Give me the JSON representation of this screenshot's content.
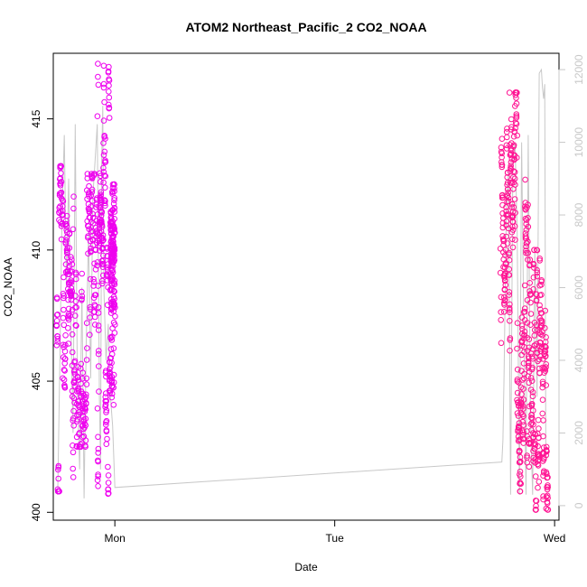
{
  "chart_data": {
    "type": "scatter",
    "title": "ATOM2 Northeast_Pacific_2 CO2_NOAA",
    "xlabel": "Date",
    "ylabel": "CO2_NOAA",
    "x_ticks": [
      "Mon",
      "Tue",
      "Wed"
    ],
    "x_tick_positions": [
      1,
      2,
      3
    ],
    "xlim": [
      0.72,
      3.02
    ],
    "ylim": [
      399.7,
      417.5
    ],
    "y_ticks": [
      400,
      405,
      410,
      415
    ],
    "y2lim": [
      -400,
      12450
    ],
    "y2_ticks": [
      0,
      2000,
      4000,
      6000,
      8000,
      10000,
      12000
    ],
    "grid": false,
    "colors": {
      "points_early": "#ee00ee",
      "points_late": "#ff1493",
      "secondary_line": "#c8c8c8",
      "axis": "#000000",
      "secondary_axis": "#c8c8c8"
    },
    "series": [
      {
        "axis": "left",
        "style": "points",
        "segments": [
          {
            "x_range": [
              0.735,
              0.82
            ],
            "y_range": [
              400.8,
              413.2
            ]
          },
          {
            "x_range": [
              0.82,
              0.92
            ],
            "y_range": [
              402.5,
              412.9
            ]
          },
          {
            "x_range": [
              0.92,
              0.98
            ],
            "y_range": [
              400.3,
              417.1
            ]
          },
          {
            "x_range": [
              0.98,
              1.0
            ],
            "y_range": [
              404.0,
              412.5
            ]
          },
          {
            "x_range": [
              2.755,
              2.83
            ],
            "y_range": [
              403.5,
              416.0
            ]
          },
          {
            "x_range": [
              2.83,
              2.9
            ],
            "y_range": [
              400.8,
              413.6
            ]
          },
          {
            "x_range": [
              2.9,
              2.97
            ],
            "y_range": [
              400.1,
              410.0
            ]
          }
        ],
        "highlights": [
          {
            "x": 0.923,
            "y": 417.1
          },
          {
            "x": 0.923,
            "y": 416.6
          },
          {
            "x": 0.925,
            "y": 416.3
          },
          {
            "x": 0.921,
            "y": 415.1
          },
          {
            "x": 2.795,
            "y": 416.0
          },
          {
            "x": 2.783,
            "y": 414.3
          },
          {
            "x": 2.815,
            "y": 414.0
          }
        ]
      },
      {
        "axis": "right",
        "style": "line",
        "x": [
          0.74,
          0.75,
          0.76,
          0.77,
          0.78,
          0.79,
          0.8,
          0.81,
          0.82,
          0.83,
          0.84,
          0.85,
          0.86,
          0.87,
          0.88,
          0.89,
          0.9,
          0.91,
          0.92,
          0.93,
          0.935,
          0.94,
          0.945,
          0.95,
          0.96,
          0.97,
          0.98,
          0.99,
          1.0,
          2.76,
          2.765,
          2.77,
          2.78,
          2.79,
          2.8,
          2.81,
          2.82,
          2.83,
          2.84,
          2.85,
          2.86,
          2.87,
          2.88,
          2.89,
          2.9,
          2.91,
          2.92,
          2.93,
          2.94,
          2.945,
          2.95,
          2.955,
          2.96
        ],
        "y": [
          300,
          4000,
          8000,
          10200,
          6000,
          9000,
          5000,
          2000,
          10500,
          3000,
          1000,
          6000,
          200,
          4500,
          7500,
          3500,
          8500,
          9500,
          10500,
          3000,
          1000,
          9500,
          11000,
          6000,
          4000,
          5000,
          3000,
          2200,
          500,
          1200,
          1800,
          3500,
          8000,
          9200,
          300,
          9500,
          10000,
          7500,
          300,
          10000,
          5000,
          300,
          10200,
          2500,
          300,
          7000,
          3000,
          11900,
          12000,
          11500,
          11200,
          11600,
          1500
        ]
      }
    ]
  }
}
